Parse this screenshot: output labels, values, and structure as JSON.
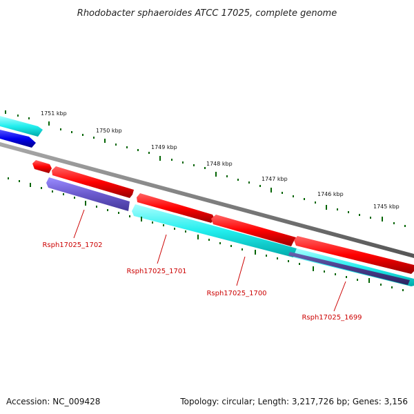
{
  "title": "Rhodobacter sphaeroides ATCC 17025, complete genome",
  "footer": {
    "accession": "Accession: NC_009428",
    "summary": "Topology: circular; Length: 3,217,726 bp; Genes: 3,156"
  },
  "scale_labels": [
    "1751 kbp",
    "1750 kbp",
    "1749 kbp",
    "1748 kbp",
    "1747 kbp",
    "1746 kbp",
    "1745 kbp"
  ],
  "gene_labels": [
    "Rsph17025_1702",
    "Rsph17025_1701",
    "Rsph17025_1700",
    "Rsph17025_1699"
  ],
  "colors": {
    "backbone": "#888888",
    "forward_gene": "#ff0000",
    "reverse_gene": "#00ffff",
    "blue_feature": "#0000ff",
    "slate_feature": "#6a5acd",
    "dark_slate_feature": "#483d8b",
    "tick": "#006400",
    "gene_label": "#cc0000"
  }
}
